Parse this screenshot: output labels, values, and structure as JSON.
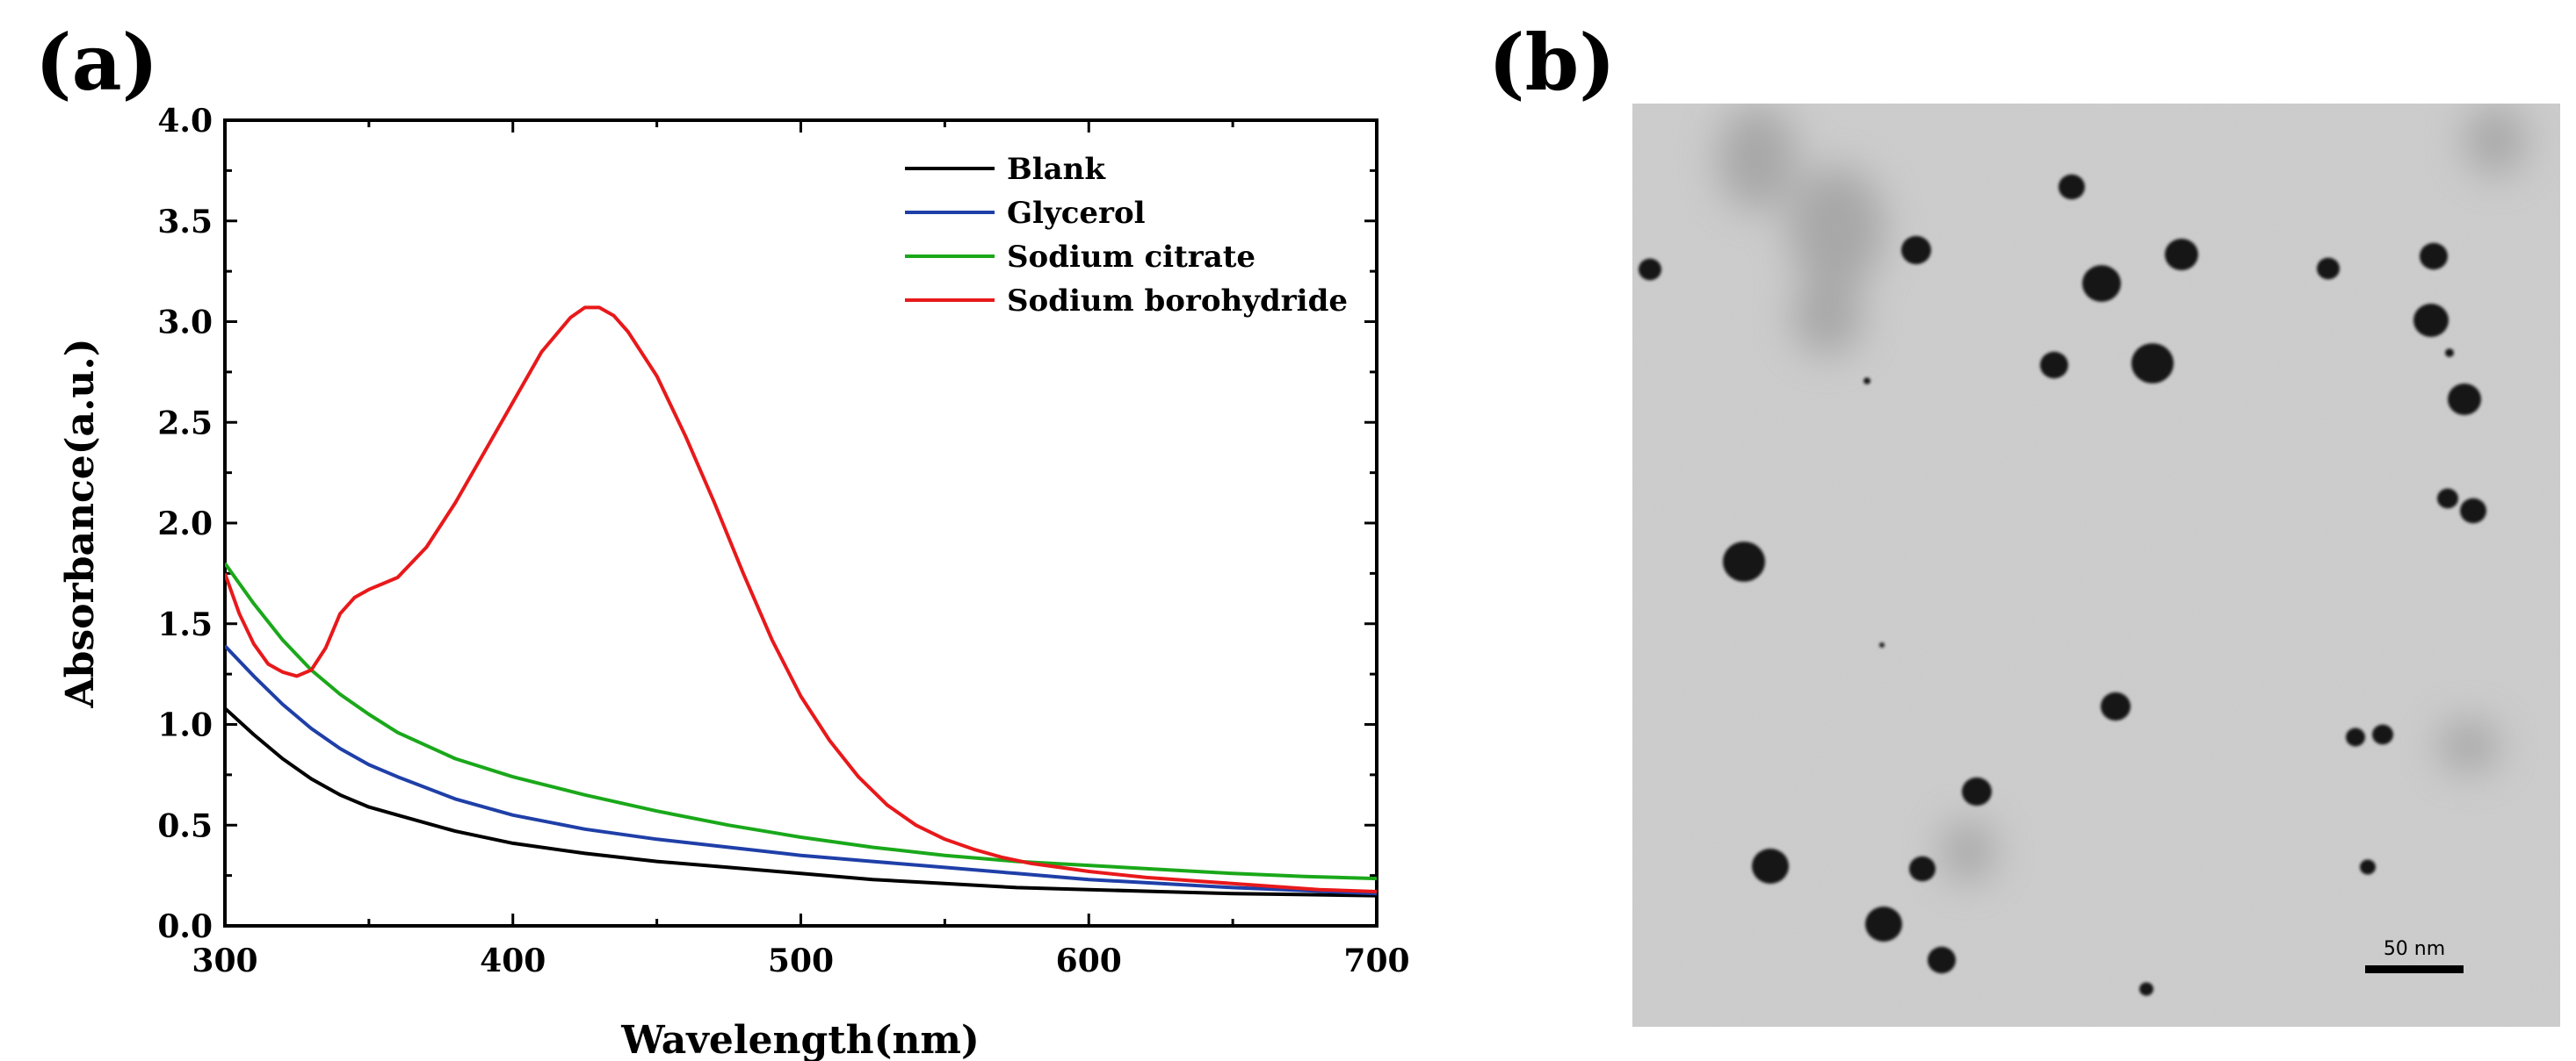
{
  "panels": {
    "a_label": "(a)",
    "b_label": "(b)"
  },
  "chart_data": {
    "type": "line",
    "title": "",
    "xlabel": "Wavelength(nm)",
    "ylabel": "Absorbance(a.u.)",
    "xlim": [
      300,
      700
    ],
    "ylim": [
      0.0,
      4.0
    ],
    "xticks": [
      300,
      400,
      500,
      600,
      700
    ],
    "xtick_labels": [
      "300",
      "400",
      "500",
      "600",
      "700"
    ],
    "yticks": [
      0.0,
      0.5,
      1.0,
      1.5,
      2.0,
      2.5,
      3.0,
      3.5,
      4.0
    ],
    "ytick_labels": [
      "0.0",
      "0.5",
      "1.0",
      "1.5",
      "2.0",
      "2.5",
      "3.0",
      "3.5",
      "4.0"
    ],
    "grid": false,
    "legend_position": "top-right",
    "series": [
      {
        "name": "Blank",
        "color": "#000000",
        "x": [
          300,
          310,
          320,
          330,
          340,
          350,
          360,
          380,
          400,
          425,
          450,
          475,
          500,
          525,
          550,
          575,
          600,
          625,
          650,
          675,
          700
        ],
        "y": [
          1.08,
          0.95,
          0.83,
          0.73,
          0.65,
          0.59,
          0.55,
          0.47,
          0.41,
          0.36,
          0.32,
          0.29,
          0.26,
          0.23,
          0.21,
          0.19,
          0.18,
          0.17,
          0.16,
          0.155,
          0.15
        ]
      },
      {
        "name": "Glycerol",
        "color": "#1f3fa8",
        "x": [
          300,
          310,
          320,
          330,
          340,
          350,
          360,
          380,
          400,
          425,
          450,
          475,
          500,
          525,
          550,
          575,
          600,
          625,
          650,
          675,
          700
        ],
        "y": [
          1.39,
          1.24,
          1.1,
          0.98,
          0.88,
          0.8,
          0.74,
          0.63,
          0.55,
          0.48,
          0.43,
          0.39,
          0.35,
          0.32,
          0.29,
          0.26,
          0.23,
          0.21,
          0.19,
          0.175,
          0.16
        ]
      },
      {
        "name": "Sodium citrate",
        "color": "#1aa81a",
        "x": [
          300,
          310,
          320,
          330,
          340,
          350,
          360,
          380,
          400,
          425,
          450,
          475,
          500,
          525,
          550,
          575,
          600,
          625,
          650,
          675,
          700
        ],
        "y": [
          1.8,
          1.6,
          1.42,
          1.27,
          1.15,
          1.05,
          0.96,
          0.83,
          0.74,
          0.65,
          0.57,
          0.5,
          0.44,
          0.39,
          0.35,
          0.32,
          0.3,
          0.28,
          0.26,
          0.245,
          0.235
        ]
      },
      {
        "name": "Sodium borohydride",
        "color": "#e8191b",
        "x": [
          300,
          305,
          310,
          315,
          320,
          325,
          330,
          335,
          340,
          345,
          350,
          355,
          360,
          370,
          380,
          390,
          400,
          410,
          420,
          425,
          430,
          435,
          440,
          450,
          460,
          470,
          480,
          490,
          500,
          510,
          520,
          530,
          540,
          550,
          560,
          570,
          580,
          590,
          600,
          620,
          640,
          660,
          680,
          700
        ],
        "y": [
          1.75,
          1.55,
          1.4,
          1.3,
          1.26,
          1.24,
          1.27,
          1.38,
          1.55,
          1.63,
          1.67,
          1.7,
          1.73,
          1.88,
          2.1,
          2.35,
          2.6,
          2.85,
          3.02,
          3.07,
          3.07,
          3.03,
          2.95,
          2.73,
          2.43,
          2.1,
          1.75,
          1.42,
          1.14,
          0.92,
          0.74,
          0.6,
          0.5,
          0.43,
          0.38,
          0.34,
          0.31,
          0.29,
          0.27,
          0.24,
          0.22,
          0.2,
          0.18,
          0.17
        ]
      }
    ]
  },
  "tem_image": {
    "scale_bar_label": "50 nm",
    "background_color": "#cfcfcf",
    "particle_color": "#161616"
  }
}
